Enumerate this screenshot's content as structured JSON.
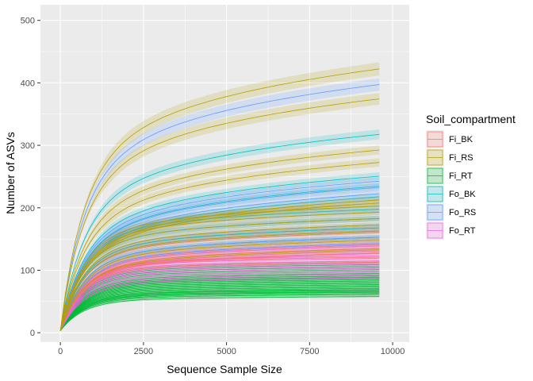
{
  "chart_data": {
    "type": "line",
    "title": "",
    "xlabel": "Sequence Sample Size",
    "ylabel": "Number of ASVs",
    "xlim": [
      -600,
      10500
    ],
    "ylim": [
      -15,
      525
    ],
    "xticks": [
      0,
      2500,
      5000,
      7500,
      10000
    ],
    "xtick_labels": [
      "0",
      "2500",
      "5000",
      "7500",
      "10000"
    ],
    "yticks": [
      0,
      100,
      200,
      300,
      400,
      500
    ],
    "ytick_labels": [
      "0",
      "100",
      "200",
      "300",
      "400",
      "500"
    ],
    "grid": true,
    "legend": {
      "title": "Soil_compartment",
      "placement": "right",
      "entries": [
        "Fi_BK",
        "Fi_RS",
        "Fi_RT",
        "Fo_BK",
        "Fo_RS",
        "Fo_RT"
      ]
    },
    "colors": {
      "Fi_BK": "#F8766D",
      "Fi_RS": "#B79F00",
      "Fi_RT": "#00BA38",
      "Fo_BK": "#00BFC4",
      "Fo_RS": "#619CFF",
      "Fo_RT": "#F564E3"
    },
    "series": [
      {
        "name": "Fi_RT",
        "plateaus": [
          55,
          58,
          60,
          62,
          63,
          65,
          66,
          68,
          70,
          72,
          74,
          76,
          78,
          80,
          82,
          84,
          86,
          88,
          90,
          92,
          95,
          98,
          102,
          106,
          110
        ],
        "max_x": 9700
      },
      {
        "name": "Fo_RT",
        "plateaus": [
          85,
          90,
          95,
          100,
          104,
          108,
          112,
          116,
          120,
          124,
          128,
          132,
          136,
          140
        ],
        "max_x": 9700
      },
      {
        "name": "Fi_BK",
        "plateaus": [
          110,
          118,
          125,
          132,
          138,
          145,
          150,
          158,
          165
        ],
        "max_x": 9700
      },
      {
        "name": "Fo_BK",
        "plateaus": [
          150,
          165,
          180,
          195,
          215,
          232,
          248,
          315
        ],
        "max_x": 9700
      },
      {
        "name": "Fo_RS",
        "plateaus": [
          140,
          150,
          160,
          170,
          180,
          190,
          200,
          210,
          220,
          230,
          240,
          395
        ],
        "max_x": 9700
      },
      {
        "name": "Fi_RS",
        "plateaus": [
          130,
          145,
          160,
          170,
          180,
          190,
          200,
          205,
          210,
          270,
          290,
          372,
          420
        ],
        "max_x": 9700
      }
    ]
  }
}
